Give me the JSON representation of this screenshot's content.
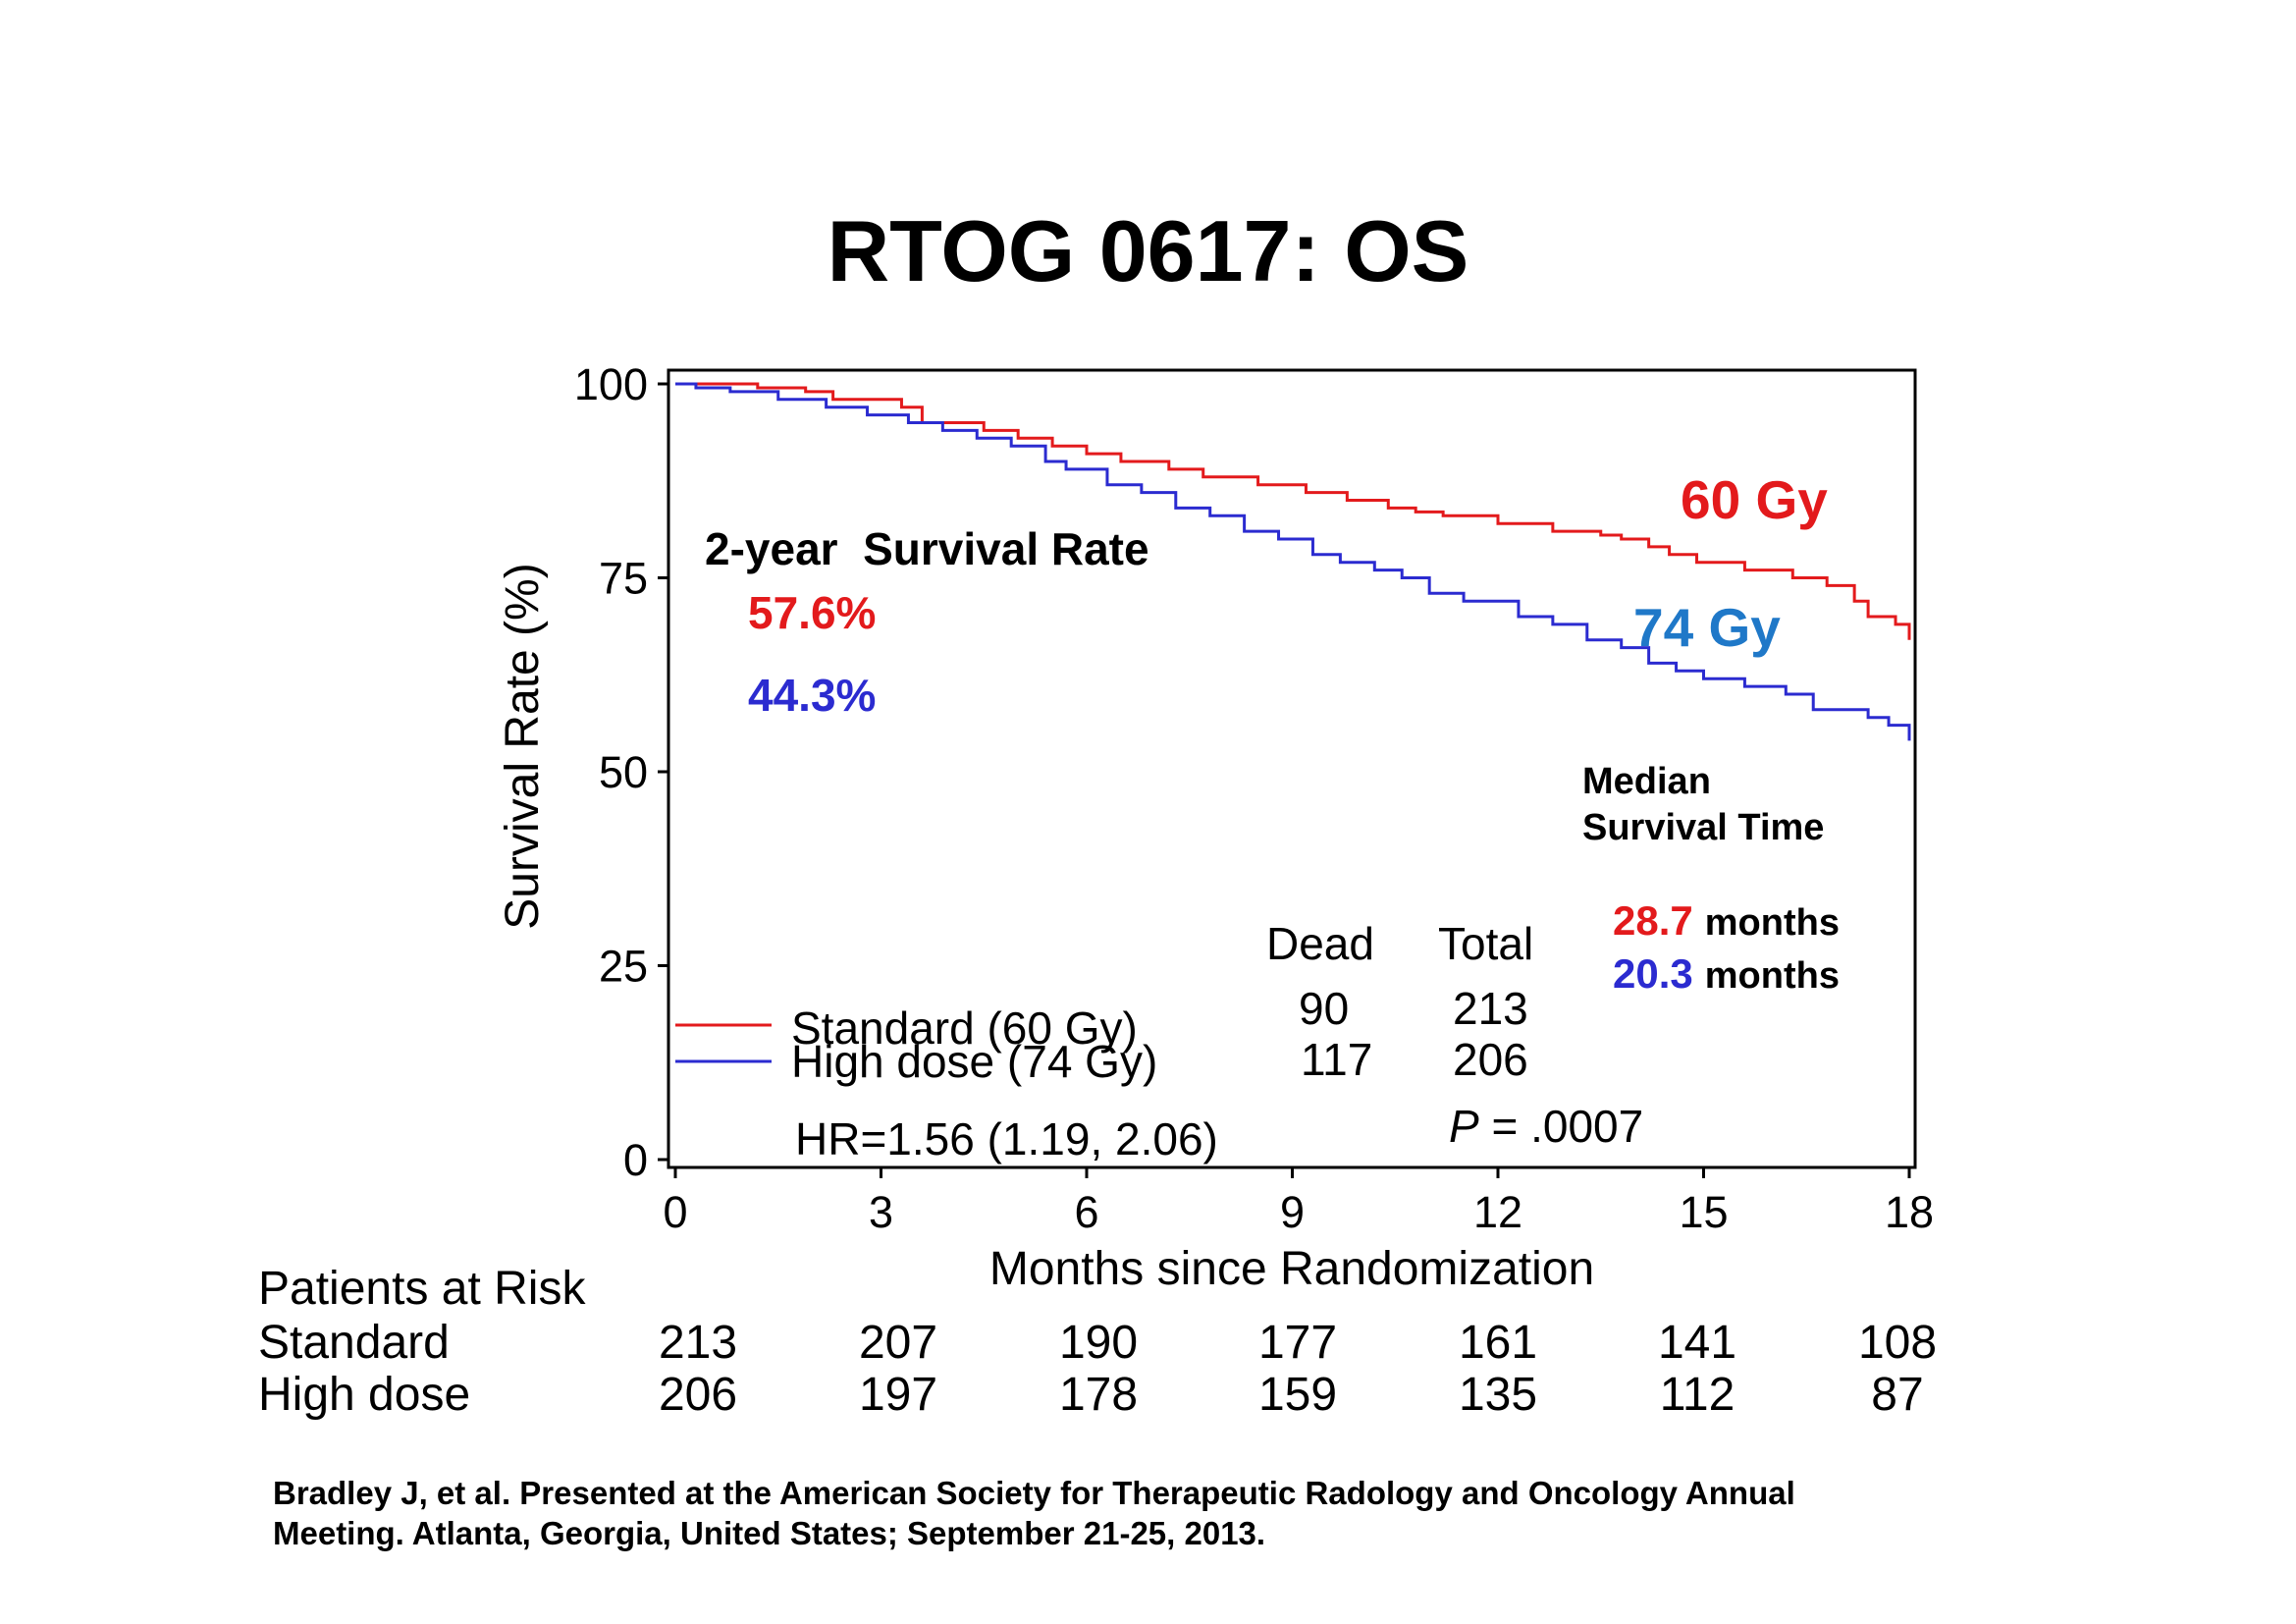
{
  "title": "RTOG 0617: OS",
  "colors": {
    "red": "#e31a1c",
    "blue": "#2b2bd0",
    "label_blue": "#1f78c8",
    "black": "#000000"
  },
  "chart_data": {
    "type": "line",
    "title": "RTOG 0617: OS",
    "xlabel": "Months since Randomization",
    "ylabel": "Survival Rate (%)",
    "xlim": [
      0,
      18
    ],
    "ylim": [
      0,
      100
    ],
    "xticks": [
      "0",
      "3",
      "6",
      "9",
      "12",
      "15",
      "18"
    ],
    "yticks": [
      "0",
      "25",
      "50",
      "75",
      "100"
    ],
    "xtick_values": [
      0,
      3,
      6,
      9,
      12,
      15,
      18
    ],
    "ytick_values": [
      0,
      25,
      50,
      75,
      100
    ],
    "grid": false,
    "series": [
      {
        "name": "Standard (60 Gy)",
        "color": "#e31a1c",
        "step": true,
        "x": [
          0,
          0.3,
          1.2,
          1.9,
          2.3,
          3.3,
          3.6,
          4.5,
          5.0,
          5.5,
          6.0,
          6.5,
          7.2,
          7.7,
          8.5,
          9.2,
          9.8,
          10.4,
          10.8,
          11.2,
          12.0,
          12.8,
          13.5,
          13.8,
          14.2,
          14.5,
          14.9,
          15.6,
          16.3,
          16.8,
          17.2,
          17.4,
          17.8,
          18.0
        ],
        "y": [
          100,
          100,
          99.5,
          99,
          98,
          97,
          95,
          94,
          93,
          92,
          91,
          90,
          89,
          88,
          87,
          86,
          85,
          84,
          83.5,
          83,
          82,
          81,
          80.5,
          80,
          79,
          78,
          77,
          76,
          75,
          74,
          72,
          70,
          69,
          67
        ]
      },
      {
        "name": "High dose (74 Gy)",
        "color": "#2b2bd0",
        "step": true,
        "x": [
          0,
          0.3,
          0.8,
          1.5,
          2.2,
          2.8,
          3.4,
          3.9,
          4.4,
          4.9,
          5.4,
          5.7,
          6.3,
          6.8,
          7.3,
          7.8,
          8.3,
          8.8,
          9.3,
          9.7,
          10.2,
          10.6,
          11.0,
          11.5,
          12.3,
          12.8,
          13.3,
          13.8,
          14.2,
          14.6,
          15.0,
          15.6,
          16.2,
          16.6,
          17.4,
          17.7,
          18.0
        ],
        "y": [
          100,
          99.5,
          99,
          98,
          97,
          96,
          95,
          94,
          93,
          92,
          90,
          89,
          87,
          86,
          84,
          83,
          81,
          80,
          78,
          77,
          76,
          75,
          73,
          72,
          70,
          69,
          67,
          66,
          64,
          63,
          62,
          61,
          60,
          58,
          57,
          56,
          54
        ]
      }
    ],
    "legend": {
      "position": "bottom-left",
      "entries": [
        {
          "label": "Standard (60 Gy)",
          "dead": "90",
          "total": "213"
        },
        {
          "label": "High dose (74 Gy)",
          "dead": "117",
          "total": "206"
        }
      ],
      "dead_header": "Dead",
      "total_header": "Total"
    },
    "annotations": {
      "label_60": "60 Gy",
      "label_74": "74 Gy",
      "survival_heading": "2-year  Survival Rate",
      "survival_60": "57.6%",
      "survival_74": "44.3%",
      "median_heading_1": "Median",
      "median_heading_2": "Survival Time",
      "median_60_value": "28.7",
      "median_74_value": "20.3",
      "median_unit": "months",
      "hr": "HR=1.56 (1.19, 2.06)",
      "p_label": "P",
      "p_value": " = .0007"
    }
  },
  "risk_table": {
    "heading": "Patients at Risk",
    "rows": [
      {
        "label": "Standard",
        "values": [
          "213",
          "207",
          "190",
          "177",
          "161",
          "141",
          "108"
        ]
      },
      {
        "label": "High dose",
        "values": [
          "206",
          "197",
          "178",
          "159",
          "135",
          "112",
          "87"
        ]
      }
    ]
  },
  "citation": {
    "line1": "Bradley J, et al. Presented at the American Society for Therapeutic Radology and Oncology Annual",
    "line2": "Meeting. Atlanta, Georgia, United States; September 21-25, 2013."
  }
}
